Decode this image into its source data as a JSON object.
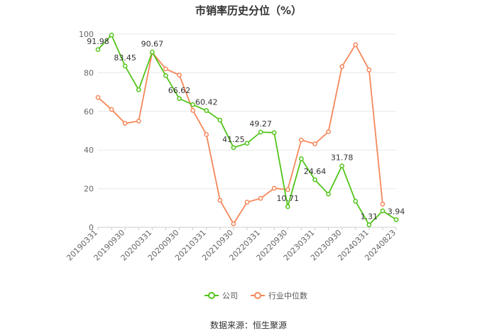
{
  "chart_data": {
    "type": "line",
    "title": "市销率历史分位（%）",
    "x": [
      "20190331",
      "20190630",
      "20190930",
      "20191231",
      "20200331",
      "20200630",
      "20200930",
      "20201231",
      "20210331",
      "20210630",
      "20210930",
      "20211231",
      "20220331",
      "20220630",
      "20220930",
      "20221231",
      "20230331",
      "20230630",
      "20230930",
      "20231231",
      "20240331",
      "20240630",
      "20240823"
    ],
    "x_tick_labels": [
      "20190331",
      "20190930",
      "20200331",
      "20200930",
      "20210331",
      "20210930",
      "20220331",
      "20220930",
      "20230331",
      "20230930",
      "20240331",
      "20240823"
    ],
    "ylim": [
      0,
      100
    ],
    "y_ticks": [
      0,
      20,
      40,
      60,
      80,
      100
    ],
    "grid": true,
    "legend_position": "bottom",
    "series": [
      {
        "name": "公司",
        "color": "#52c41a",
        "values": [
          91.98,
          99.5,
          83.45,
          71.2,
          90.67,
          78.5,
          66.62,
          63.5,
          60.42,
          55.5,
          41.25,
          43.5,
          49.27,
          49.0,
          10.71,
          35.5,
          24.64,
          17.2,
          31.78,
          13.5,
          1.31,
          8.5,
          3.94
        ],
        "labels": {
          "0": "91.98",
          "2": "83.45",
          "4": "90.67",
          "6": "66.62",
          "8": "60.42",
          "10": "41.25",
          "12": "49.27",
          "14": "10.71",
          "16": "24.64",
          "18": "31.78",
          "20": "1.31",
          "22": "3.94"
        }
      },
      {
        "name": "行业中位数",
        "color": "#f5875a",
        "values": [
          67.2,
          61.0,
          53.8,
          55.0,
          90.5,
          82.0,
          78.8,
          60.5,
          48.0,
          14.0,
          1.8,
          13.0,
          15.0,
          20.2,
          19.5,
          45.2,
          43.2,
          49.5,
          83.2,
          94.5,
          81.5,
          12.0,
          null
        ]
      }
    ]
  },
  "source": "数据来源：恒生聚源"
}
